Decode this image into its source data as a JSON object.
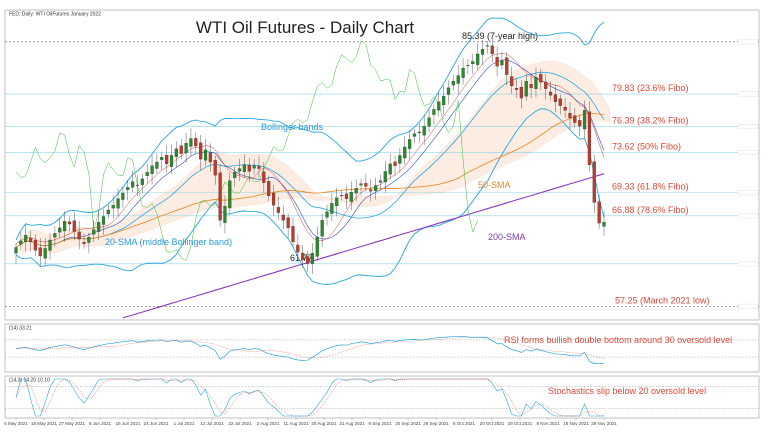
{
  "header": {
    "symbol_line": "FED; Daily: WTI OilFutures January 2022",
    "rsi_header": "(14) 33.21",
    "stoch_header": "(14,3) 14.20 10.10"
  },
  "chart_data": {
    "type": "candlestick",
    "title": "WTI Oil Futures - Daily Chart",
    "ylim": [
      56,
      87.5
    ],
    "x_ticks": [
      "6 May 2021",
      "18 May 2021",
      "27 May 2021",
      "8 Jun 2021",
      "16 Jun 2021",
      "24 Jun 2021",
      "1 Jul 2021",
      "12 Jul 2021",
      "22 Jul 2021",
      "2 Aug 2021",
      "11 Aug 2021",
      "20 Aug 2021",
      "31 Aug 2021",
      "9 Sep 2021",
      "20 Sep 2021",
      "29 Sep 2021",
      "8 Oct 2021",
      "20 Oct 2021",
      "29 Oct 2021",
      "9 Nov 2021",
      "18 Nov 2021",
      "29 Nov 2021"
    ],
    "levels": [
      {
        "label": "85.39 (7-year high)",
        "value": 85.39
      },
      {
        "label": "79.83 (23.6% Fibo)",
        "value": 79.83
      },
      {
        "label": "76.39 (38.2% Fibo)",
        "value": 76.39
      },
      {
        "label": "73.62 (50% Fibo)",
        "value": 73.62
      },
      {
        "label": "69.33 (61.8% Fibo)",
        "value": 69.33
      },
      {
        "label": "66.88 (78.6% Fibo)",
        "value": 66.88
      },
      {
        "label": "61.77",
        "value": 61.77
      },
      {
        "label": "57.25 (March 2021 low)",
        "value": 57.25
      }
    ],
    "annotations": {
      "bollinger": "Bollinger bands",
      "sma20": "20-SMA (middle Bollinger band)",
      "sma50": "50-SMA",
      "sma200": "200-SMA"
    },
    "closes": [
      63.5,
      64.2,
      64.8,
      64.1,
      63.2,
      62.6,
      63.4,
      64.3,
      65.0,
      65.6,
      66.3,
      66.0,
      65.2,
      64.4,
      63.9,
      64.6,
      65.4,
      66.2,
      66.8,
      67.5,
      68.0,
      68.7,
      69.3,
      69.9,
      70.5,
      70.1,
      70.8,
      71.5,
      72.2,
      72.6,
      73.1,
      72.4,
      73.3,
      74.0,
      73.5,
      74.6,
      75.1,
      74.3,
      72.9,
      73.9,
      72.6,
      71.2,
      66.4,
      67.9,
      70.6,
      71.5,
      71.9,
      72.3,
      71.6,
      72.2,
      71.9,
      70.4,
      69.0,
      68.0,
      67.2,
      66.4,
      65.6,
      64.1,
      63.0,
      62.2,
      61.8,
      62.9,
      64.6,
      66.4,
      67.3,
      68.2,
      68.8,
      69.0,
      68.7,
      69.4,
      69.8,
      70.3,
      70.0,
      69.5,
      70.1,
      70.6,
      71.6,
      72.4,
      72.2,
      73.3,
      74.2,
      75.0,
      75.6,
      75.8,
      76.4,
      77.3,
      78.2,
      79.0,
      79.6,
      80.5,
      81.2,
      81.8,
      82.6,
      82.9,
      83.3,
      84.1,
      84.6,
      85.0,
      84.1,
      82.8,
      83.4,
      81.9,
      80.7,
      80.3,
      79.4,
      81.2,
      80.5,
      81.6,
      81.1,
      80.4,
      79.7,
      79.0,
      78.6,
      78.1,
      77.3,
      76.8,
      76.4,
      78.1,
      72.3,
      68.3,
      66.1,
      66.2
    ],
    "rsi": {
      "note": "RSI forms bullish double bottom around 30 oversold level",
      "levels": [
        70,
        30
      ]
    },
    "stochastic": {
      "note": "Stochastics slip below 20 oversold level",
      "levels": [
        80,
        20
      ]
    }
  }
}
